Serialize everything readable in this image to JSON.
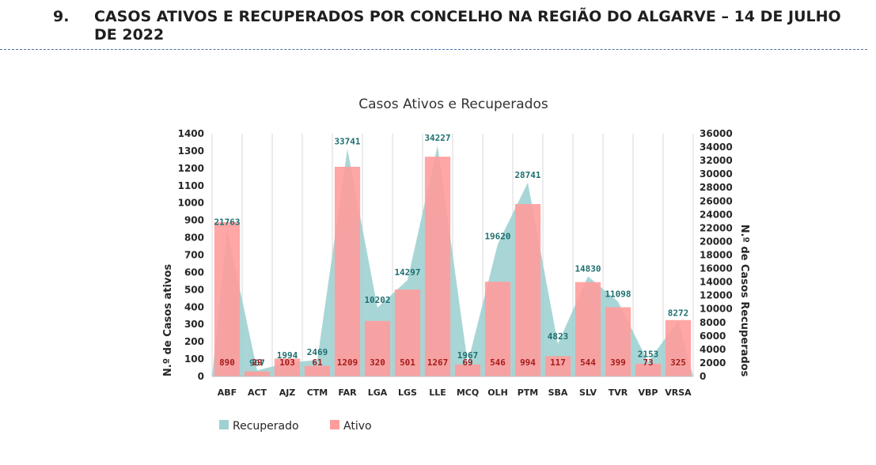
{
  "page": {
    "section_number": "9.",
    "section_title": "CASOS ATIVOS E RECUPERADOS POR CONCELHO NA REGIÃO DO ALGARVE – 14 DE JULHO DE 2022"
  },
  "chart_data": {
    "type": "bar",
    "title": "Casos Ativos e Recuperados",
    "categories": [
      "ABF",
      "ACT",
      "AJZ",
      "CTM",
      "FAR",
      "LGA",
      "LGS",
      "LLE",
      "MCQ",
      "OLH",
      "PTM",
      "SBA",
      "SLV",
      "TVR",
      "VBP",
      "VRSA"
    ],
    "ylabel": "N.º de Casos ativos",
    "y2label": "N.º de Casos Recuperados",
    "ylim": [
      0,
      1400
    ],
    "yticks": [
      "0",
      "100",
      "200",
      "300",
      "400",
      "500",
      "600",
      "700",
      "800",
      "900",
      "1000",
      "1100",
      "1200",
      "1300",
      "1400"
    ],
    "y2lim": [
      0,
      36000
    ],
    "y2ticks": [
      "0",
      "2000",
      "4000",
      "6000",
      "8000",
      "10000",
      "12000",
      "14000",
      "16000",
      "18000",
      "20000",
      "22000",
      "24000",
      "26000",
      "28000",
      "30000",
      "32000",
      "34000",
      "36000"
    ],
    "grid": "vertical category separators",
    "legend_position": "bottom-left",
    "series": [
      {
        "name": "Recuperado",
        "kind": "area",
        "axis": "secondary",
        "color": "#9fd1d2",
        "values": [
          21763,
          907,
          1994,
          2469,
          33741,
          10202,
          14297,
          34227,
          1967,
          19620,
          28741,
          4823,
          14830,
          11098,
          2153,
          8272
        ],
        "labels": [
          "21763",
          "907",
          "1994",
          "2469",
          "33741",
          "10202",
          "14297",
          "34227",
          "1967",
          "19620",
          "28741",
          "4823",
          "14830",
          "11098",
          "2153",
          "8272"
        ]
      },
      {
        "name": "Ativo",
        "kind": "bar",
        "axis": "primary",
        "color": "#ff9c9c",
        "values": [
          890,
          29,
          103,
          61,
          1209,
          320,
          501,
          1267,
          69,
          546,
          994,
          117,
          544,
          399,
          73,
          325
        ],
        "labels": [
          "890",
          "29",
          "103",
          "61",
          "1209",
          "320",
          "501",
          "1267",
          "69",
          "546",
          "994",
          "117",
          "544",
          "399",
          "73",
          "325"
        ]
      }
    ]
  }
}
